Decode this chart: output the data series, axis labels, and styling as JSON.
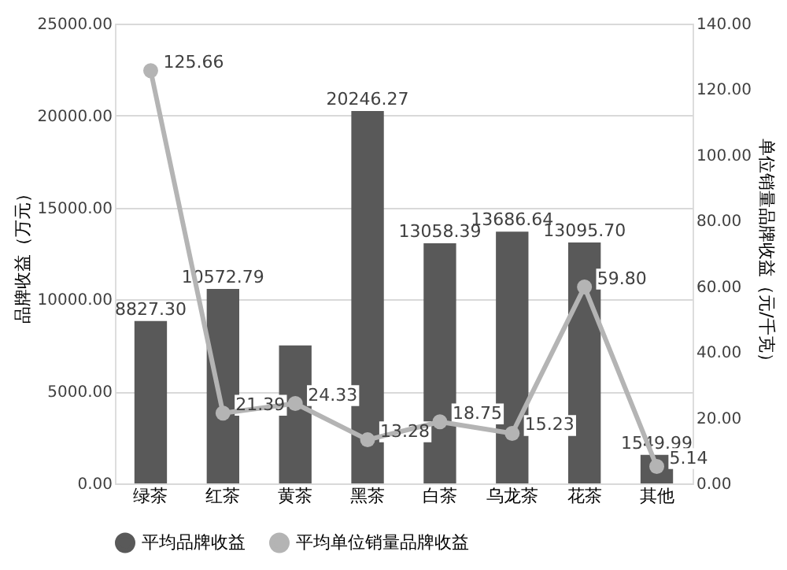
{
  "chart_data": {
    "type": "bar",
    "categories": [
      "绿茶",
      "红茶",
      "黄茶",
      "黑茶",
      "白茶",
      "乌龙茶",
      "花茶",
      "其他"
    ],
    "ylabel": "品牌收益（万元）",
    "y2label": "单位销量品牌收益（元/千克）",
    "ylim": [
      0,
      25000
    ],
    "yticks": [
      {
        "value": 0,
        "label": "0.00"
      },
      {
        "value": 5000,
        "label": "5000.00"
      },
      {
        "value": 10000,
        "label": "10000.00"
      },
      {
        "value": 15000,
        "label": "15000.00"
      },
      {
        "value": 20000,
        "label": "20000.00"
      },
      {
        "value": 25000,
        "label": "25000.00"
      }
    ],
    "y2lim": [
      0,
      140
    ],
    "y2ticks": [
      {
        "value": 0,
        "label": "0.00"
      },
      {
        "value": 20,
        "label": "20.00"
      },
      {
        "value": 40,
        "label": "40.00"
      },
      {
        "value": 60,
        "label": "60.00"
      },
      {
        "value": 80,
        "label": "80.00"
      },
      {
        "value": 100,
        "label": "100.00"
      },
      {
        "value": 120,
        "label": "120.00"
      },
      {
        "value": 140,
        "label": "140.00"
      }
    ],
    "grid": "y",
    "legend": "bottom",
    "series": [
      {
        "name": "平均品牌收益",
        "color": "#595959",
        "values": [
          8827.3,
          10572.79,
          7500,
          20246.27,
          13058.39,
          13686.64,
          13095.7,
          1549.99
        ],
        "value_labels": [
          "8827.30",
          "10572.79",
          null,
          "20246.27",
          "13058.39",
          "13686.64",
          "13095.70",
          "1549.99"
        ]
      },
      {
        "name": "平均单位销量品牌收益",
        "type": "line",
        "axis": "y2",
        "color": "#b4b4b4",
        "marker": "circle",
        "values": [
          125.66,
          21.39,
          24.33,
          13.28,
          18.75,
          15.23,
          59.8,
          5.14
        ],
        "value_labels": [
          "125.66",
          "21.39",
          "24.33",
          "13.28",
          "18.75",
          "15.23",
          "59.80",
          "5.14"
        ]
      }
    ]
  }
}
